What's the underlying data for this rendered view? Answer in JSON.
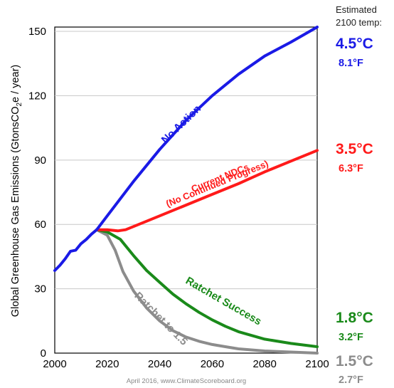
{
  "chart_data": {
    "type": "line",
    "title": "",
    "xlabel": "",
    "ylabel": "Global Greenhouse Gas Emissions  (GtonsCO2e / year)",
    "ylabel_parts": [
      "Global Greenhouse Gas Emissions  (GtonsCO",
      "2",
      "e / year)"
    ],
    "xlim": [
      2000,
      2100
    ],
    "ylim": [
      0,
      152
    ],
    "x_ticks": [
      2000,
      2020,
      2040,
      2060,
      2080,
      2100
    ],
    "y_ticks": [
      0,
      30,
      60,
      90,
      120,
      150
    ],
    "grid": "horizontal",
    "series": [
      {
        "name": "No Action",
        "color": "#1a1ae6",
        "x": [
          2000,
          2002,
          2004,
          2006,
          2008,
          2010,
          2012,
          2014,
          2016,
          2020,
          2030,
          2040,
          2050,
          2060,
          2070,
          2080,
          2090,
          2100
        ],
        "y": [
          38.5,
          41,
          44,
          47.5,
          48,
          51,
          53,
          55.5,
          57.5,
          64,
          80,
          95,
          108.5,
          120,
          130,
          138.5,
          145,
          152
        ]
      },
      {
        "name": "Current NDCs (No Continued Progress)",
        "color": "#ff1a1a",
        "x": [
          2016,
          2020,
          2024,
          2027,
          2030,
          2035,
          2040,
          2050,
          2060,
          2070,
          2080,
          2090,
          2100
        ],
        "y": [
          57.5,
          57.5,
          57,
          57.5,
          59,
          61.5,
          64,
          69,
          74,
          79,
          84.5,
          89.5,
          94.5
        ]
      },
      {
        "name": "Ratchet Success",
        "color": "#1a8a1a",
        "x": [
          2016,
          2020,
          2025,
          2030,
          2035,
          2040,
          2045,
          2050,
          2055,
          2060,
          2065,
          2070,
          2080,
          2090,
          2100
        ],
        "y": [
          57.5,
          56.5,
          53,
          45.5,
          38.5,
          33,
          27.5,
          23,
          19,
          15.5,
          12.5,
          10,
          6.5,
          4.5,
          3
        ]
      },
      {
        "name": "Ratchet to 1.5",
        "color": "#8c8c8c",
        "x": [
          2016,
          2020,
          2023,
          2026,
          2030,
          2035,
          2040,
          2045,
          2050,
          2055,
          2060,
          2065,
          2070,
          2080,
          2090,
          2100
        ],
        "y": [
          57.5,
          55,
          48,
          38,
          29,
          21,
          15,
          10.5,
          7.5,
          5.5,
          4,
          3,
          2,
          1,
          0.5,
          0
        ]
      }
    ],
    "annotations": {
      "series_labels": [
        {
          "text": "No Action",
          "color": "#1a1ae6"
        },
        {
          "text": "Current NDCs",
          "color": "#ff1a1a"
        },
        {
          "text": "(No Continued Progress)",
          "color": "#ff1a1a"
        },
        {
          "text": "Ratchet Success",
          "color": "#1a8a1a"
        },
        {
          "text": "Ratchet to 1.5",
          "color": "#8c8c8c"
        }
      ],
      "temperature_header": [
        "Estimated",
        "2100 temp:"
      ],
      "temperatures": [
        {
          "c": "4.5°C",
          "f": "8.1°F",
          "color": "#1a1ae6"
        },
        {
          "c": "3.5°C",
          "f": "6.3°F",
          "color": "#ff1a1a"
        },
        {
          "c": "1.8°C",
          "f": "3.2°F",
          "color": "#1a8a1a"
        },
        {
          "c": "1.5°C",
          "f": "2.7°F",
          "color": "#8c8c8c"
        }
      ],
      "credit": "April 2016, www.ClimateScoreboard.org"
    }
  }
}
